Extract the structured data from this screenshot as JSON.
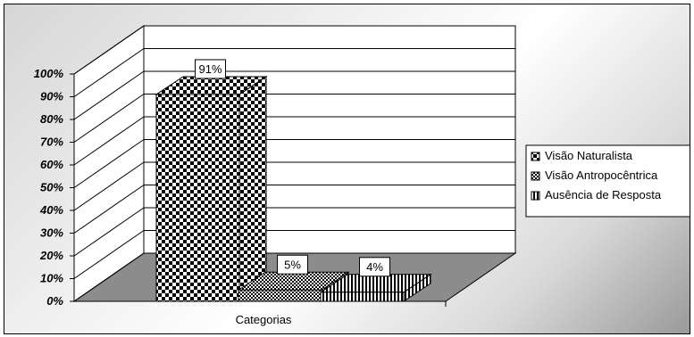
{
  "chart_data": {
    "type": "bar",
    "categories": [
      "Categorias"
    ],
    "series": [
      {
        "name": "Visão Naturalista",
        "values": [
          91
        ],
        "data_label": "91%",
        "pattern": "checker-large"
      },
      {
        "name": "Visão Antropocêntrica",
        "values": [
          5
        ],
        "data_label": "5%",
        "pattern": "checker-small"
      },
      {
        "name": "Ausência de Resposta",
        "values": [
          4
        ],
        "data_label": "4%",
        "pattern": "vertical-stripes"
      }
    ],
    "xlabel": "Categorias",
    "ylabel": "",
    "ylim": [
      0,
      100
    ],
    "y_ticks": [
      "0%",
      "10%",
      "20%",
      "30%",
      "40%",
      "50%",
      "60%",
      "70%",
      "80%",
      "90%",
      "100%"
    ],
    "grid": true,
    "legend_position": "right",
    "three_d": true
  }
}
